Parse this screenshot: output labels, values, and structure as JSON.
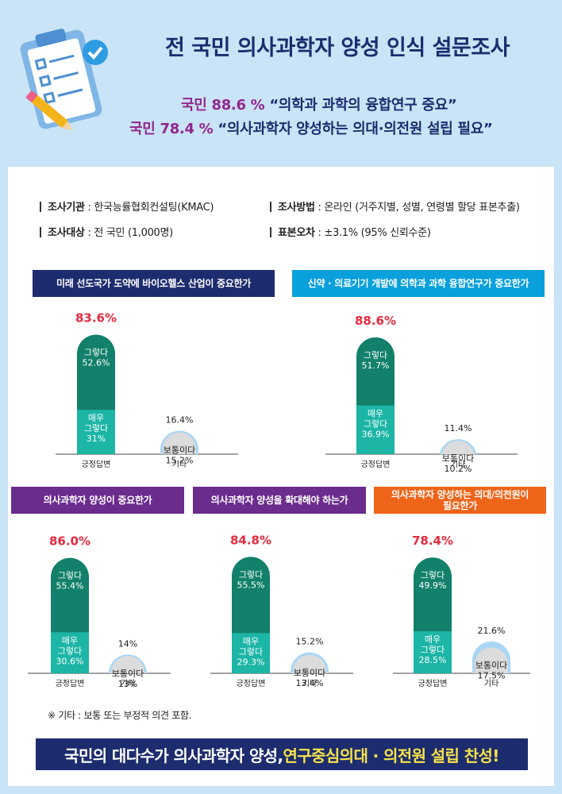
{
  "header": {
    "title": "전 국민 의사과학자 양성 인식 설문조사",
    "line1_pct": "국민 88.6 %",
    "line1_quote": "“의학과 과학의 융합연구 중요”",
    "line2_pct": "국민 78.4 %",
    "line2_quote": "“의사과학자 양성하는 의대·의전원 설립 필요”"
  },
  "meta": {
    "agency_key": "조사기관",
    "agency_val": " : 한국능률협회컨설팅(KMAC)",
    "target_key": "조사대상",
    "target_val": " : 전 국민 (1,000명)",
    "method_key": "조사방법",
    "method_val": " : 온라인 (거주지별, 성별, 연령별 할당 표본추출)",
    "error_key": "표본오차",
    "error_val": " : ±3.1% (95% 신뢰수준)"
  },
  "colors": {
    "navy": "#1d2c6e",
    "blue": "#0aa0dc",
    "purple": "#6b2c8e",
    "orange": "#ee6419",
    "dark_green": "#12806a",
    "teal": "#1cb5a6",
    "gray": "#dcdcdc",
    "light_blue": "#a9d6f5",
    "red": "#e8293d"
  },
  "chart_data": [
    {
      "type": "bar",
      "title": "미래 선도국가 도약에 바이오헬스 산업이 중요한가",
      "categories": [
        "긍정답변",
        "기타"
      ],
      "positive_total": "83.6%",
      "positive_segments": [
        {
          "name": "매우\n그렇다",
          "value": 31.0,
          "label": "31%"
        },
        {
          "name": "그렇다",
          "value": 52.6,
          "label": "52.6%"
        }
      ],
      "other_total": "16.4%",
      "other_segment": {
        "name": "보통이다",
        "value": 15.2,
        "label": "15.2%"
      }
    },
    {
      "type": "bar",
      "title": "신약 · 의료기기 개발에 의학과 과학 융합연구가 중요한가",
      "categories": [
        "긍정답변",
        "기타"
      ],
      "positive_total": "88.6%",
      "positive_segments": [
        {
          "name": "매우\n그렇다",
          "value": 36.9,
          "label": "36.9%"
        },
        {
          "name": "그렇다",
          "value": 51.7,
          "label": "51.7%"
        }
      ],
      "other_total": "11.4%",
      "other_segment": {
        "name": "보통이다",
        "value": 10.2,
        "label": "10.2%"
      }
    },
    {
      "type": "bar",
      "title": "의사과학자 양성이 중요한가",
      "categories": [
        "긍정답변",
        "기타"
      ],
      "positive_total": "86.0%",
      "positive_segments": [
        {
          "name": "매우\n그렇다",
          "value": 30.6,
          "label": "30.6%"
        },
        {
          "name": "그렇다",
          "value": 55.4,
          "label": "55.4%"
        }
      ],
      "other_total": "14%",
      "other_segment": {
        "name": "보통이다",
        "value": 13.0,
        "label": "13%"
      }
    },
    {
      "type": "bar",
      "title": "의사과학자 양성을 확대해야 하는가",
      "categories": [
        "긍정답변",
        "기타"
      ],
      "positive_total": "84.8%",
      "positive_segments": [
        {
          "name": "매우\n그렇다",
          "value": 29.3,
          "label": "29.3%"
        },
        {
          "name": "그렇다",
          "value": 55.5,
          "label": "55.5%"
        }
      ],
      "other_total": "15.2%",
      "other_segment": {
        "name": "보통이다",
        "value": 13.4,
        "label": "13.4%"
      }
    },
    {
      "type": "bar",
      "title": "의사과학자 양성하는 의대/의전원이\n필요한가",
      "categories": [
        "긍정답변",
        "기타"
      ],
      "positive_total": "78.4%",
      "positive_segments": [
        {
          "name": "매우\n그렇다",
          "value": 28.5,
          "label": "28.5%"
        },
        {
          "name": "그렇다",
          "value": 49.9,
          "label": "49.9%"
        }
      ],
      "other_total": "21.6%",
      "other_segment": {
        "name": "보통이다",
        "value": 17.5,
        "label": "17.5%"
      }
    }
  ],
  "note": "※ 기타 : 보통 또는 부정적 의견 포함.",
  "banner": {
    "part1": "국민의 대다수가 의사과학자 양성, ",
    "part2": "연구중심의대 · 의전원 설립 찬성!"
  }
}
